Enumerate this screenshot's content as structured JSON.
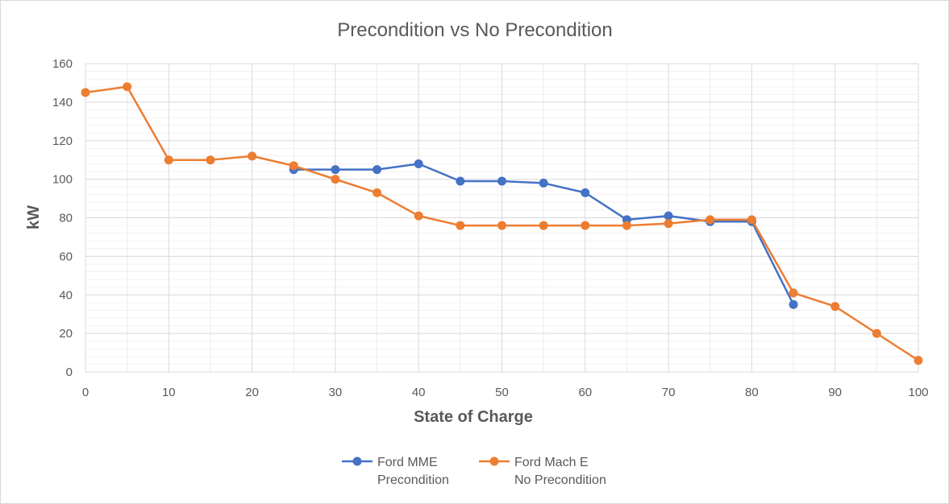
{
  "chart_data": {
    "type": "line",
    "title": "Precondition vs No Precondition",
    "xlabel": "State of Charge",
    "ylabel": "kW",
    "xlim": [
      0,
      100
    ],
    "ylim": [
      0,
      160
    ],
    "x_ticks": [
      "0",
      "10",
      "20",
      "30",
      "40",
      "50",
      "60",
      "70",
      "80",
      "90",
      "100"
    ],
    "y_ticks": [
      "0",
      "20",
      "40",
      "60",
      "80",
      "100",
      "120",
      "140",
      "160"
    ],
    "grid": true,
    "minor_grid": true,
    "legend_position": "bottom",
    "series": [
      {
        "name": "Ford MME Precondition",
        "legend_lines": [
          "Ford MME",
          "Precondition"
        ],
        "color": "#4472c4",
        "points": [
          [
            25,
            105
          ],
          [
            30,
            105
          ],
          [
            35,
            105
          ],
          [
            40,
            108
          ],
          [
            45,
            99
          ],
          [
            50,
            99
          ],
          [
            55,
            98
          ],
          [
            60,
            93
          ],
          [
            65,
            79
          ],
          [
            70,
            81
          ],
          [
            75,
            78
          ],
          [
            80,
            78
          ],
          [
            85,
            35
          ]
        ]
      },
      {
        "name": "Ford Mach E No Precondition",
        "legend_lines": [
          "Ford Mach E",
          "No Precondition"
        ],
        "color": "#ed7d31",
        "points": [
          [
            0,
            145
          ],
          [
            5,
            148
          ],
          [
            10,
            110
          ],
          [
            15,
            110
          ],
          [
            20,
            112
          ],
          [
            25,
            107
          ],
          [
            30,
            100
          ],
          [
            35,
            93
          ],
          [
            40,
            81
          ],
          [
            45,
            76
          ],
          [
            50,
            76
          ],
          [
            55,
            76
          ],
          [
            60,
            76
          ],
          [
            65,
            76
          ],
          [
            70,
            77
          ],
          [
            75,
            79
          ],
          [
            80,
            79
          ],
          [
            85,
            41
          ],
          [
            90,
            34
          ],
          [
            95,
            20
          ],
          [
            100,
            6
          ]
        ]
      }
    ]
  }
}
